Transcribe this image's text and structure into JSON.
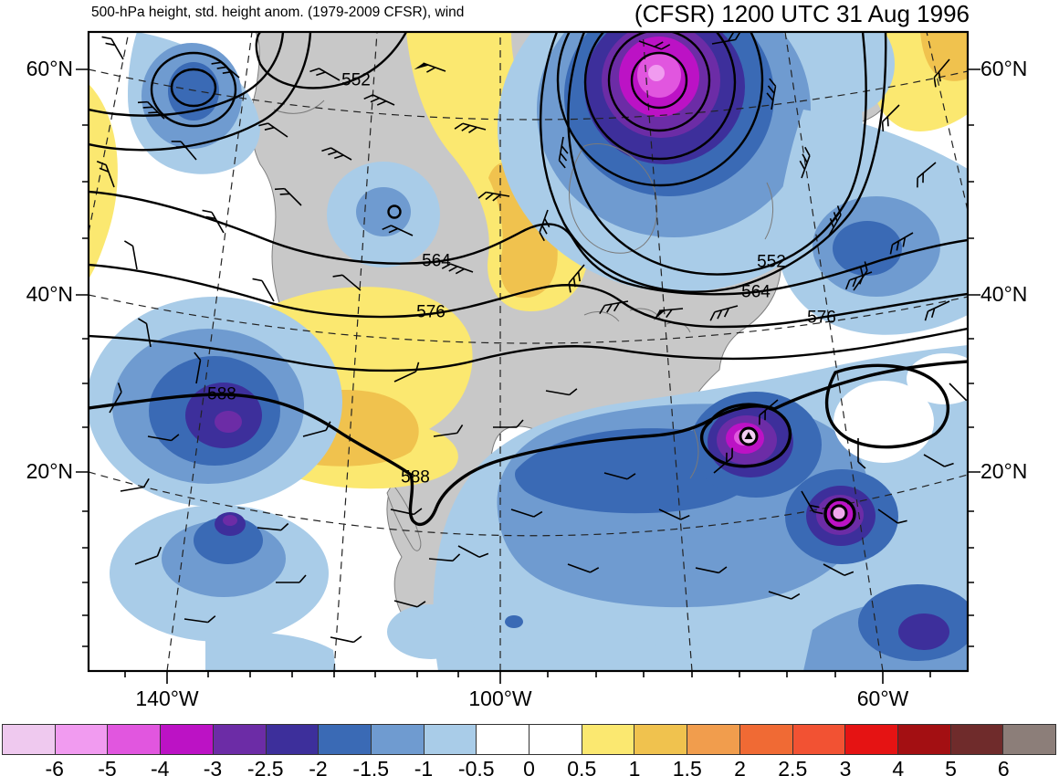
{
  "header": {
    "left_title": "500-hPa height, std. height anom. (1979-2009 CFSR), wind",
    "right_title": "(CFSR) 1200 UTC 31 Aug 1996"
  },
  "axes": {
    "lat_left": [
      "60°N",
      "40°N",
      "20°N"
    ],
    "lat_right": [
      "60°N",
      "40°N",
      "20°N"
    ],
    "lon_bottom": [
      "140°W",
      "100°W",
      "60°W"
    ]
  },
  "map": {
    "contour_labels": [
      {
        "text": "552"
      },
      {
        "text": "564"
      },
      {
        "text": "576"
      },
      {
        "text": "588"
      },
      {
        "text": "588"
      },
      {
        "text": "552"
      },
      {
        "text": "564"
      },
      {
        "text": "576"
      }
    ],
    "icons": {
      "cyclone_1": "tropical-cyclone-center-marker",
      "cyclone_2": "tropical-cyclone-center-marker"
    }
  },
  "colorbar": {
    "labels": [
      "-6",
      "-5",
      "-4",
      "-3",
      "-2.5",
      "-2",
      "-1.5",
      "-1",
      "-0.5",
      "0",
      "0.5",
      "1",
      "1.5",
      "2",
      "2.5",
      "3",
      "4",
      "5",
      "6"
    ],
    "colors": [
      "#EFC9EF",
      "#F19BF0",
      "#E156DF",
      "#BC12C5",
      "#6C2CA6",
      "#3D2F9B",
      "#3A6AB5",
      "#6F9BD0",
      "#A9CCE8",
      "#FFFFFF",
      "#FFFFFF",
      "#FBE870",
      "#F0C24E",
      "#F19D4D",
      "#F06A34",
      "#F25233",
      "#E51313",
      "#A30F12",
      "#6F2B2B",
      "#8C7E79"
    ]
  }
}
